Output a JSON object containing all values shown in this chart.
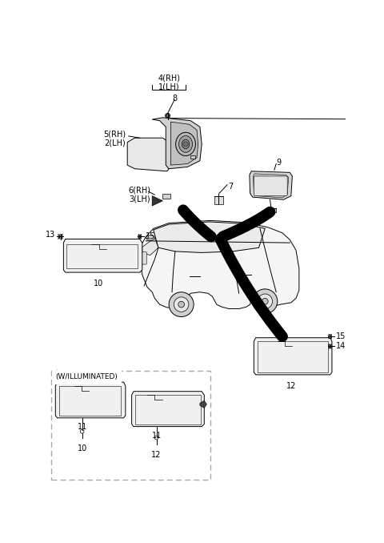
{
  "bg_color": "#ffffff",
  "lc": "#000000",
  "dashed_color": "#aaaaaa",
  "figsize": [
    4.8,
    6.78
  ],
  "dpi": 100,
  "labels": {
    "l4rh1lh": "4(RH)\n1(LH)",
    "l5rh2lh": "5(RH)\n2(LH)",
    "l6rh3lh": "6(RH)\n3(LH)",
    "l7": "7",
    "l8": "8",
    "l9": "9",
    "l10": "10",
    "l11": "11",
    "l12": "12",
    "l13": "13",
    "l14": "14",
    "l15": "15",
    "wil": "(W/ILLUMINATED)"
  }
}
